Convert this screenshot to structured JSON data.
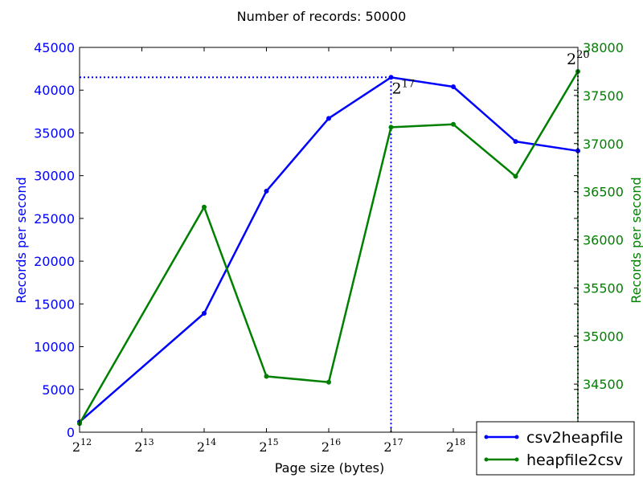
{
  "chart_data": {
    "type": "line",
    "title": "Number of records: 50000",
    "xlabel": "Page size (bytes)",
    "ylabel_left": "Records per second",
    "ylabel_right": "Records per second",
    "x_scale": "log2",
    "x_ticks": [
      {
        "base": "2",
        "exp": "12",
        "value": 4096
      },
      {
        "base": "2",
        "exp": "13",
        "value": 8192
      },
      {
        "base": "2",
        "exp": "14",
        "value": 16384
      },
      {
        "base": "2",
        "exp": "15",
        "value": 32768
      },
      {
        "base": "2",
        "exp": "16",
        "value": 65536
      },
      {
        "base": "2",
        "exp": "17",
        "value": 131072
      },
      {
        "base": "2",
        "exp": "18",
        "value": 262144
      }
    ],
    "xlim": [
      4096,
      1048576
    ],
    "ylim_left": [
      0,
      45000
    ],
    "ylim_right": [
      34000,
      38000
    ],
    "yticks_left": [
      "0",
      "5000",
      "10000",
      "15000",
      "20000",
      "25000",
      "30000",
      "35000",
      "40000",
      "45000"
    ],
    "yticks_right": [
      "34500",
      "35000",
      "35500",
      "36000",
      "36500",
      "37000",
      "37500",
      "38000"
    ],
    "series": [
      {
        "name": "csv2heapfile",
        "axis": "left",
        "color": "#0000ff",
        "x": [
          4096,
          16384,
          32768,
          65536,
          131072,
          262144,
          524288,
          1048576
        ],
        "y": [
          1200,
          13900,
          28200,
          36700,
          41500,
          40400,
          34000,
          32900
        ]
      },
      {
        "name": "heapfile2csv",
        "axis": "right",
        "color": "#008000",
        "x": [
          4096,
          16384,
          32768,
          65536,
          131072,
          262144,
          524288,
          1048576
        ],
        "y": [
          34090,
          36340,
          34580,
          34520,
          37170,
          37200,
          36660,
          37750
        ]
      }
    ],
    "annotations": [
      {
        "base": "2",
        "exp": "17",
        "x": 131072,
        "y": 41500,
        "axis": "left"
      },
      {
        "base": "2",
        "exp": "20",
        "x": 1048576,
        "y": 37750,
        "axis": "right"
      }
    ],
    "grid": false,
    "legend": "bottom-right"
  }
}
